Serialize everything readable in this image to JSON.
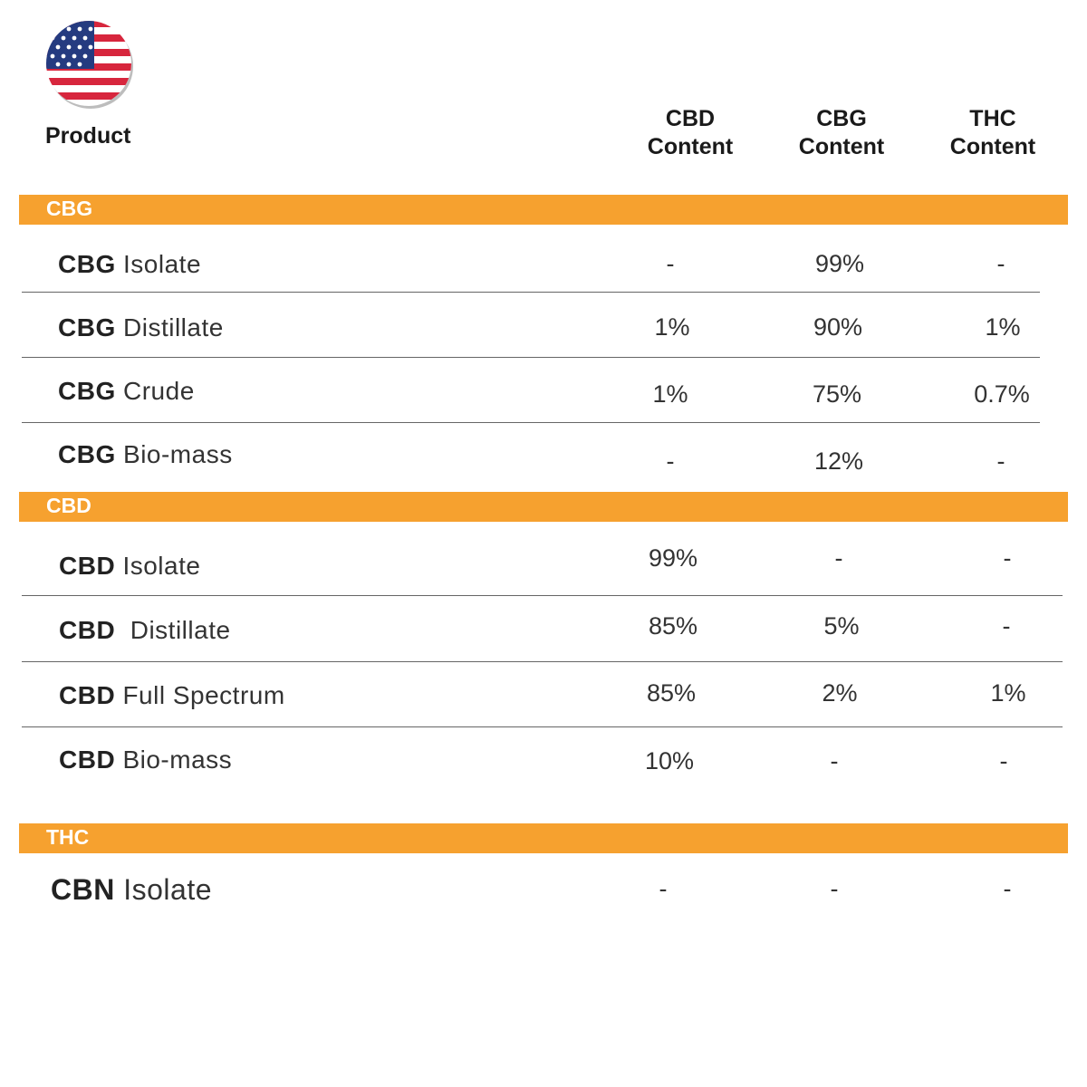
{
  "header": {
    "flag_icon": "us-flag-icon",
    "product_label": "Product",
    "columns": [
      {
        "line1": "CBD",
        "line2": "Content"
      },
      {
        "line1": "CBG",
        "line2": "Content"
      },
      {
        "line1": "THC",
        "line2": "Content"
      }
    ]
  },
  "colors": {
    "band": "#f6a12f",
    "band_text": "#ffffff",
    "divider": "#666666"
  },
  "sections": [
    {
      "label": "CBG",
      "rows": [
        {
          "bold": "CBG",
          "rest": "Isolate",
          "cbd": "-",
          "cbg": "99%",
          "thc": "-"
        },
        {
          "bold": "CBG",
          "rest": "Distillate",
          "cbd": "1%",
          "cbg": "90%",
          "thc": "1%"
        },
        {
          "bold": "CBG",
          "rest": "Crude",
          "cbd": "1%",
          "cbg": "75%",
          "thc": "0.7%"
        },
        {
          "bold": "CBG",
          "rest": "Bio-mass",
          "cbd": "-",
          "cbg": "12%",
          "thc": "-"
        }
      ]
    },
    {
      "label": "CBD",
      "rows": [
        {
          "bold": "CBD",
          "rest": "Isolate",
          "cbd": "99%",
          "cbg": "-",
          "thc": "-"
        },
        {
          "bold": "CBD",
          "rest": "Distillate",
          "cbd": "85%",
          "cbg": "5%",
          "thc": "-"
        },
        {
          "bold": "CBD",
          "rest": "Full Spectrum",
          "cbd": "85%",
          "cbg": "2%",
          "thc": "1%"
        },
        {
          "bold": "CBD",
          "rest": "Bio-mass",
          "cbd": "10%",
          "cbg": "-",
          "thc": "-"
        }
      ]
    },
    {
      "label": "THC",
      "rows": [
        {
          "bold": "CBN",
          "rest": "Isolate",
          "cbd": "-",
          "cbg": "-",
          "thc": "-"
        }
      ]
    }
  ]
}
